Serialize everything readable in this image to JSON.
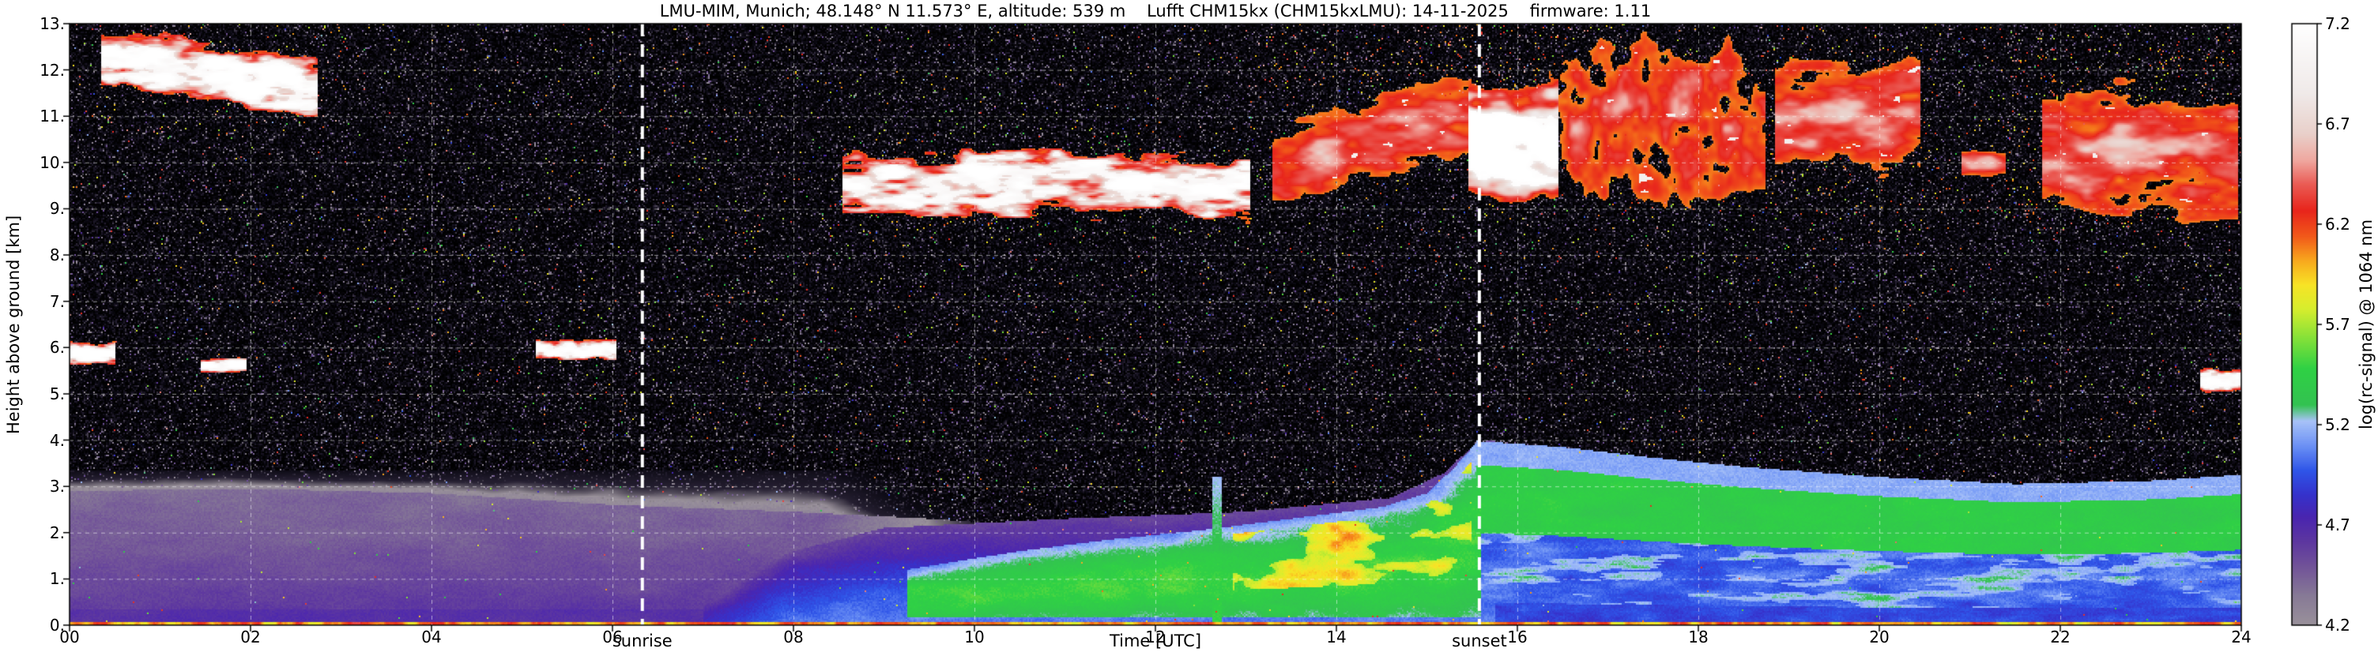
{
  "title": "LMU-MIM, Munich; 48.148° N 11.573° E, altitude: 539 m    Lufft CHM15kx (CHM15kxLMU): 14-11-2025    firmware: 1.11",
  "axes": {
    "xlabel": "Time [UTC]",
    "ylabel": "Height above ground [km]",
    "x_ticks": [
      "00",
      "02",
      "04",
      "06",
      "08",
      "10",
      "12",
      "14",
      "16",
      "18",
      "20",
      "22",
      "24"
    ],
    "y_ticks": [
      "13.",
      "12.",
      "11.",
      "10.",
      "9.",
      "8.",
      "7.",
      "6.",
      "5.",
      "4.",
      "3.",
      "2.",
      "1.",
      "0."
    ]
  },
  "annotations": {
    "sunrise_label": "sunrise",
    "sunset_label": "sunset"
  },
  "colorbar": {
    "label": "log(rc-signal) @ 1064 nm",
    "tick_labels": [
      "7.2",
      "6.7",
      "6.2",
      "5.7",
      "5.2",
      "4.7",
      "4.2"
    ],
    "min": 4.2,
    "max": 7.2
  },
  "chart_data": {
    "type": "heatmap",
    "x_label": "Time [UTC]",
    "y_label": "Height above ground [km]",
    "x_range": [
      0,
      24
    ],
    "y_range": [
      0,
      13
    ],
    "x_tick_step": 2,
    "y_tick_step": 1,
    "value_label": "log(rc-signal) @ 1064 nm",
    "value_range": [
      4.2,
      7.2
    ],
    "grid": "white-dashed",
    "sunrise_utc": 6.33,
    "sunset_utc": 15.58,
    "colormap": [
      [
        3.55,
        "#000000"
      ],
      [
        3.85,
        "#0c0a14"
      ],
      [
        4.05,
        "#241e30"
      ],
      [
        4.2,
        "#9a929b"
      ],
      [
        4.35,
        "#877a96"
      ],
      [
        4.5,
        "#715299"
      ],
      [
        4.62,
        "#5d37a0"
      ],
      [
        4.74,
        "#4a25b0"
      ],
      [
        4.85,
        "#3632cc"
      ],
      [
        4.97,
        "#2f55e8"
      ],
      [
        5.1,
        "#6e93f5"
      ],
      [
        5.22,
        "#a9c3f8"
      ],
      [
        5.3,
        "#33c251"
      ],
      [
        5.48,
        "#2fd145"
      ],
      [
        5.62,
        "#7ee03a"
      ],
      [
        5.78,
        "#d8ee2e"
      ],
      [
        5.9,
        "#f8e426"
      ],
      [
        6.02,
        "#f8a81e"
      ],
      [
        6.14,
        "#f25a1a"
      ],
      [
        6.27,
        "#e8251c"
      ],
      [
        6.4,
        "#ea5c55"
      ],
      [
        6.52,
        "#f0a8a0"
      ],
      [
        6.65,
        "#e9d0ca"
      ],
      [
        6.85,
        "#f0eae9"
      ],
      [
        7.2,
        "#ffffff"
      ]
    ],
    "aerosol_layer": {
      "morning_top_km": [
        [
          0,
          2.9
        ],
        [
          2,
          2.95
        ],
        [
          4,
          2.85
        ],
        [
          6,
          2.6
        ],
        [
          8,
          2.45
        ],
        [
          9.5,
          2.3
        ],
        [
          10.2,
          2.2
        ]
      ],
      "gray_cap_top_km": 3.35,
      "blue_top_km": [
        [
          7,
          0.8
        ],
        [
          8,
          1.6
        ],
        [
          9,
          2.1
        ],
        [
          11,
          2.3
        ],
        [
          13,
          2.45
        ],
        [
          14.6,
          2.75
        ],
        [
          15.2,
          3.3
        ],
        [
          15.55,
          3.95
        ],
        [
          15.75,
          4.0
        ]
      ],
      "mixed_layer_top_km": [
        [
          9.25,
          1.2
        ],
        [
          10.5,
          1.6
        ],
        [
          11.5,
          1.85
        ],
        [
          12.5,
          2.05
        ],
        [
          13.5,
          2.3
        ],
        [
          14.5,
          2.55
        ],
        [
          15,
          2.85
        ],
        [
          15.3,
          3.4
        ],
        [
          15.55,
          3.95
        ]
      ],
      "residual_top_km": [
        [
          15.55,
          3.98
        ],
        [
          16.5,
          3.85
        ],
        [
          17.5,
          3.62
        ],
        [
          18.5,
          3.42
        ],
        [
          20,
          3.2
        ],
        [
          21.5,
          3.05
        ],
        [
          23,
          3.12
        ],
        [
          24,
          3.25
        ]
      ],
      "yellow_core": {
        "t0": 12.85,
        "t1": 15.5,
        "frac0": 0.35,
        "frac1": 0.92
      },
      "plume_utc": 12.68
    },
    "clouds": [
      {
        "t0": 0.35,
        "t1": 2.75,
        "h0": 11.3,
        "h1": 12.6,
        "slope": -0.3,
        "type": "cirrus-white"
      },
      {
        "t0": 0.0,
        "t1": 0.5,
        "h0": 5.6,
        "h1": 6.15,
        "type": "small-white"
      },
      {
        "t0": 1.45,
        "t1": 1.95,
        "h0": 5.45,
        "h1": 5.8,
        "type": "small-white"
      },
      {
        "t0": 5.15,
        "t1": 6.05,
        "h0": 5.7,
        "h1": 6.2,
        "type": "small-white"
      },
      {
        "t0": 8.55,
        "t1": 13.05,
        "h0": 8.8,
        "h1": 10.2,
        "type": "broken-white"
      },
      {
        "t0": 13.3,
        "t1": 15.5,
        "h0": 9.6,
        "h1": 11.4,
        "slope": 0.45,
        "type": "red-mixed"
      },
      {
        "t0": 15.45,
        "t1": 16.45,
        "h0": 9.2,
        "h1": 11.7,
        "type": "thick-red-white"
      },
      {
        "t0": 16.35,
        "t1": 18.75,
        "h0": 9.3,
        "h1": 12.4,
        "type": "red-streaks"
      },
      {
        "t0": 18.85,
        "t1": 20.45,
        "h0": 9.8,
        "h1": 12.2,
        "type": "red-broken"
      },
      {
        "t0": 20.9,
        "t1": 21.4,
        "h0": 9.7,
        "h1": 10.3,
        "type": "red-broken"
      },
      {
        "t0": 21.8,
        "t1": 23.97,
        "h0": 8.9,
        "h1": 11.6,
        "type": "red-mixed"
      },
      {
        "t0": 23.55,
        "t1": 24.0,
        "h0": 5.0,
        "h1": 5.6,
        "type": "small-white"
      }
    ],
    "speckle_zones": [
      {
        "t0": 0,
        "t1": 3.1,
        "h0": 10.6,
        "h1": 13,
        "p": 0.012,
        "vmin": 5.6,
        "vmax": 6.6
      },
      {
        "t0": 13,
        "t1": 17,
        "h0": 11.4,
        "h1": 13,
        "p": 0.02,
        "vmin": 5.8,
        "vmax": 6.6
      },
      {
        "t0": 15.3,
        "t1": 24,
        "h0": 8.5,
        "h1": 13,
        "p": 0.006,
        "vmin": 5.6,
        "vmax": 6.5
      },
      {
        "t0": 8.4,
        "t1": 13.2,
        "h0": 8.2,
        "h1": 10.8,
        "p": 0.008,
        "vmin": 5.4,
        "vmax": 6.3
      },
      {
        "t0": 21.4,
        "t1": 24,
        "h0": 8.5,
        "h1": 12.5,
        "p": 0.015,
        "vmin": 5.7,
        "vmax": 6.5
      },
      {
        "t0": 17.5,
        "t1": 20.6,
        "h0": 9,
        "h1": 12.5,
        "p": 0.008,
        "vmin": 5.7,
        "vmax": 6.5
      },
      {
        "t0": 4.5,
        "t1": 24,
        "h0": 4.0,
        "h1": 13,
        "p": 0.002,
        "vmin": 5.5,
        "vmax": 6.4
      }
    ],
    "surface_line": {
      "h_km": 0.06,
      "value": 6.0
    }
  }
}
